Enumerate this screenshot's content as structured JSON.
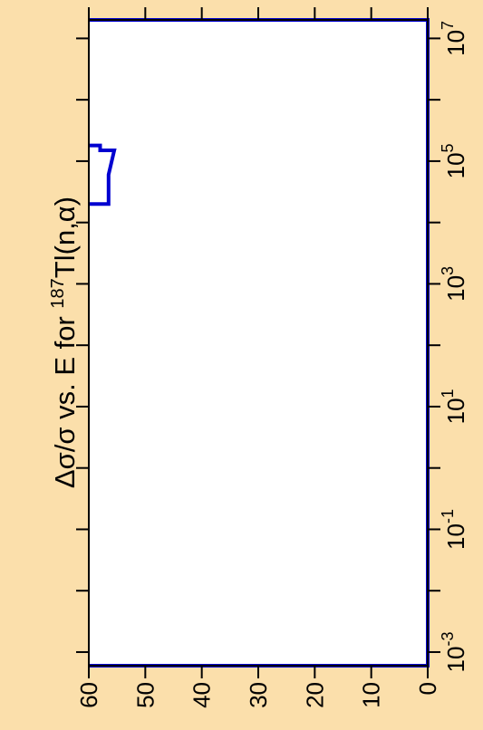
{
  "chart_data": {
    "type": "line",
    "title": "Δσ/σ vs. E for ¹⁸⁷Tl(n,α)",
    "title_parts": {
      "prefix": "Δσ/σ vs. E for ",
      "superscript": "187",
      "suffix": "Tl(n,α)"
    },
    "orientation": "rotated-90-ccw",
    "xlabel": "",
    "ylabel": "",
    "x_scale": "log",
    "x_range": [
      0.0006,
      20000000
    ],
    "y_range": [
      0,
      60
    ],
    "x_major_ticks": [
      {
        "value": 0.001,
        "base": "10",
        "exp": "-3"
      },
      {
        "value": 0.1,
        "base": "10",
        "exp": "-1"
      },
      {
        "value": 10,
        "base": "10",
        "exp": "1"
      },
      {
        "value": 1000,
        "base": "10",
        "exp": "3"
      },
      {
        "value": 100000,
        "base": "10",
        "exp": "5"
      },
      {
        "value": 10000000,
        "base": "10",
        "exp": "7"
      }
    ],
    "x_minor_ticks": [
      0.01,
      1,
      100,
      10000,
      1000000
    ],
    "y_ticks": [
      {
        "value": 0,
        "label": "0"
      },
      {
        "value": 10,
        "label": "10"
      },
      {
        "value": 20,
        "label": "20"
      },
      {
        "value": 30,
        "label": "30"
      },
      {
        "value": 40,
        "label": "40"
      },
      {
        "value": 50,
        "label": "50"
      },
      {
        "value": 60,
        "label": "60"
      }
    ],
    "series": [
      {
        "color": "#0000d0",
        "points": [
          {
            "x": 0.0006,
            "y": 60
          },
          {
            "x": 0.0006,
            "y": 0
          },
          {
            "x": 20000000,
            "y": 0
          },
          {
            "x": 20000000,
            "y": 60
          }
        ]
      },
      {
        "color": "#0000d0",
        "points": [
          {
            "x": 20000,
            "y": 60
          },
          {
            "x": 20000,
            "y": 58
          },
          {
            "x": 20000,
            "y": 56.5
          },
          {
            "x": 60000,
            "y": 56.5
          },
          {
            "x": 150000,
            "y": 55.5
          },
          {
            "x": 150000,
            "y": 58
          },
          {
            "x": 180000,
            "y": 58
          },
          {
            "x": 180000,
            "y": 60
          }
        ]
      }
    ],
    "grid": false,
    "legend": "none",
    "plot_background": "#ffffff",
    "page_background": "#fbdfab"
  }
}
